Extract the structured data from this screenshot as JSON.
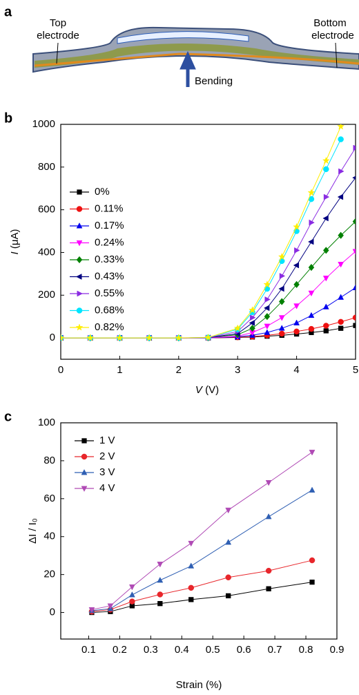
{
  "panel_a": {
    "label": "a",
    "top_electrode": [
      "Top",
      "electrode"
    ],
    "bottom_electrode": [
      "Bottom",
      "electrode"
    ],
    "arrow_label": "Bending"
  },
  "chart_data": [
    {
      "type": "line",
      "panel_label": "b",
      "x_label_var": "V",
      "x_label_unit": "(V)",
      "y_label_var": "I",
      "y_label_unit": "(μA)",
      "x": [
        0,
        0.5,
        1,
        1.5,
        2,
        2.5,
        3,
        3.25,
        3.5,
        3.75,
        4,
        4.25,
        4.5,
        4.75,
        5
      ],
      "xlim": [
        0,
        5
      ],
      "ylim": [
        -100,
        1000
      ],
      "xticks": [
        0,
        1,
        2,
        3,
        4,
        5
      ],
      "yticks": [
        0,
        200,
        400,
        600,
        800,
        1000
      ],
      "series": [
        {
          "name": "0%",
          "color": "#000000",
          "marker": "square",
          "values": [
            0,
            0,
            0,
            0,
            0,
            0,
            2,
            4,
            8,
            12,
            18,
            25,
            33,
            45,
            58
          ]
        },
        {
          "name": "0.11%",
          "color": "#ee1111",
          "marker": "circle",
          "values": [
            0,
            0,
            0,
            0,
            0,
            0,
            3,
            6,
            12,
            20,
            30,
            42,
            57,
            75,
            95
          ]
        },
        {
          "name": "0.17%",
          "color": "#0000ee",
          "marker": "triangle-up",
          "values": [
            0,
            0,
            0,
            0,
            0,
            0,
            5,
            12,
            25,
            45,
            70,
            105,
            145,
            190,
            235
          ]
        },
        {
          "name": "0.24%",
          "color": "#ff00ff",
          "marker": "triangle-down",
          "values": [
            0,
            0,
            0,
            0,
            0,
            0,
            8,
            25,
            55,
            95,
            150,
            210,
            280,
            345,
            405
          ]
        },
        {
          "name": "0.33%",
          "color": "#008000",
          "marker": "diamond",
          "values": [
            0,
            0,
            0,
            0,
            0,
            1,
            15,
            45,
            100,
            170,
            250,
            330,
            410,
            480,
            545
          ]
        },
        {
          "name": "0.43%",
          "color": "#000080",
          "marker": "triangle-left",
          "values": [
            0,
            0,
            0,
            0,
            0,
            1,
            20,
            70,
            140,
            230,
            340,
            450,
            560,
            660,
            750
          ]
        },
        {
          "name": "0.55%",
          "color": "#8a2be2",
          "marker": "triangle-right",
          "values": [
            0,
            0,
            0,
            0,
            0,
            1,
            30,
            95,
            180,
            290,
            410,
            540,
            660,
            780,
            890
          ]
        },
        {
          "name": "0.68%",
          "color": "#00e5ff",
          "marker": "circle",
          "values": [
            0,
            0,
            0,
            0,
            0,
            2,
            40,
            120,
            230,
            360,
            500,
            650,
            790,
            930,
            null
          ]
        },
        {
          "name": "0.82%",
          "color": "#ffee00",
          "marker": "star",
          "values": [
            0,
            0,
            0,
            0,
            0,
            2,
            45,
            130,
            250,
            380,
            520,
            680,
            830,
            990,
            null
          ]
        }
      ]
    },
    {
      "type": "line",
      "panel_label": "c",
      "x_label": "Strain (%)",
      "y_label": "ΔI / I₀",
      "x": [
        0.11,
        0.17,
        0.24,
        0.33,
        0.43,
        0.55,
        0.68,
        0.82
      ],
      "xlim": [
        0.01,
        0.9
      ],
      "ylim": [
        -14,
        100
      ],
      "xticks": [
        0.1,
        0.2,
        0.3,
        0.4,
        0.5,
        0.6,
        0.7,
        0.8,
        0.9
      ],
      "yticks": [
        0,
        20,
        40,
        60,
        80,
        100
      ],
      "series": [
        {
          "name": "1 V",
          "color": "#000000",
          "marker": "square",
          "values": [
            0,
            0.5,
            3.5,
            4.7,
            6.8,
            8.8,
            12.5,
            16
          ]
        },
        {
          "name": "2 V",
          "color": "#e8262b",
          "marker": "circle",
          "values": [
            0.5,
            1.5,
            5.8,
            9.5,
            13,
            18.5,
            22,
            27.5
          ]
        },
        {
          "name": "3 V",
          "color": "#2f5fb3",
          "marker": "triangle-up",
          "values": [
            1,
            2,
            9.3,
            17,
            24.5,
            37,
            50.5,
            64.5
          ]
        },
        {
          "name": "4 V",
          "color": "#b04ab5",
          "marker": "triangle-down",
          "values": [
            1.5,
            3.5,
            13.5,
            25.5,
            36.5,
            54,
            68.5,
            84.5
          ]
        }
      ]
    }
  ]
}
